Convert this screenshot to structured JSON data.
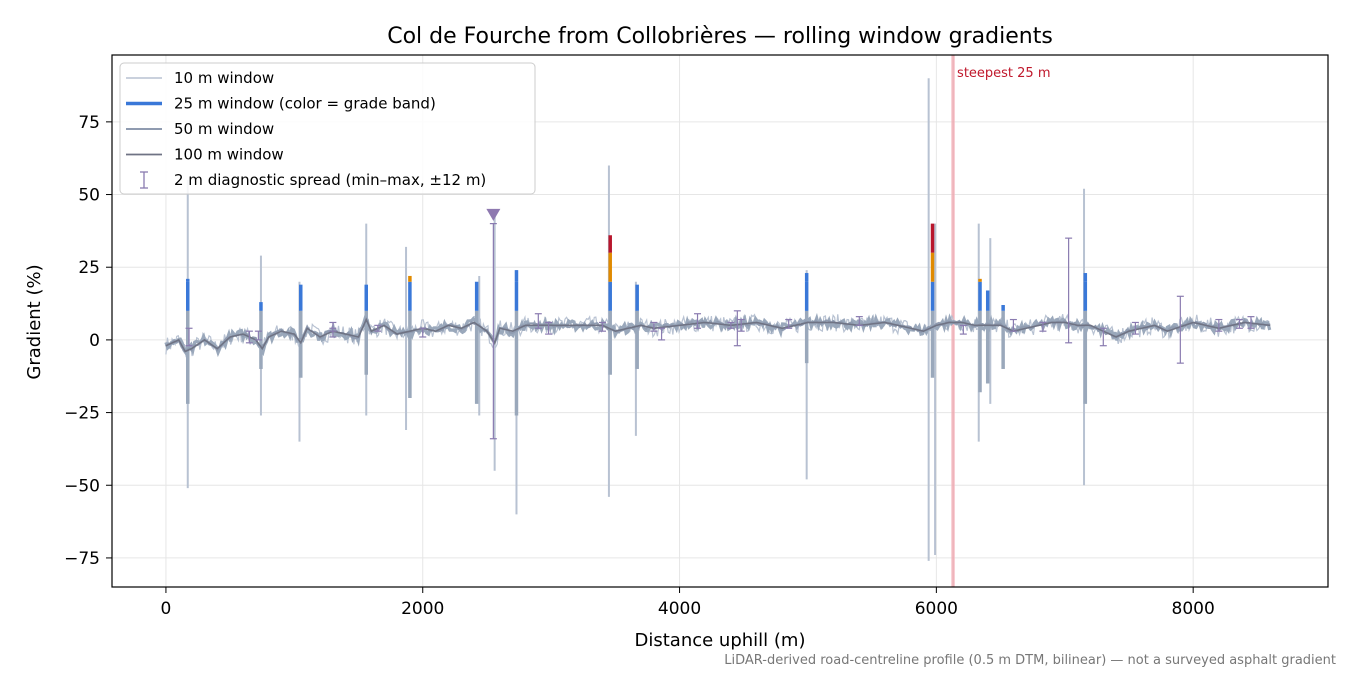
{
  "chart_data": {
    "type": "line",
    "title": "Col de Fourche from Collobrières — rolling window gradients",
    "xlabel": "Distance uphill (m)",
    "ylabel": "Gradient (%)",
    "xlim": [
      -420,
      9050
    ],
    "ylim": [
      -85,
      98
    ],
    "xticks": [
      0,
      2000,
      4000,
      6000,
      8000
    ],
    "xtick_labels": [
      "0",
      "2000",
      "4000",
      "6000",
      "8000"
    ],
    "yticks": [
      -75,
      -50,
      -25,
      0,
      25,
      50,
      75
    ],
    "ytick_labels": [
      "−75",
      "−50",
      "−25",
      "0",
      "25",
      "50",
      "75"
    ],
    "grid": true,
    "legend_position": "top-left",
    "footnote": "LiDAR-derived road-centreline profile (0.5 m DTM, bilinear) — not a surveyed asphalt gradient",
    "colors": {
      "w10": "#b8c2d2",
      "w25_base": "#9aa8bb",
      "band_blue": "#3a78d8",
      "band_orange": "#e08a00",
      "band_red": "#b8162c",
      "w50": "#8f9bb0",
      "w100": "#6f7384",
      "errorbar": "#8a7bb0",
      "marker": "#8e79b0",
      "steepest_band": "#f5b9c0",
      "steepest_line": "#e8a0a8",
      "steepest_text": "#c0182c",
      "grid": "#e6e6e6"
    },
    "legend": [
      {
        "label": "10 m window",
        "kind": "line-thin"
      },
      {
        "label": "25 m window (color = grade band)",
        "kind": "line-thick"
      },
      {
        "label": "50 m window",
        "kind": "line-mid"
      },
      {
        "label": "100 m window",
        "kind": "line-dark"
      },
      {
        "label": "2 m diagnostic spread (min–max, ±12 m)",
        "kind": "errorbar"
      }
    ],
    "annotations": {
      "steepest_label": "steepest 25 m",
      "steepest_x": 6130,
      "steepest_width": 30,
      "marker_x": 2550,
      "marker_y": 43,
      "marker_shape": "downward triangle"
    },
    "series": [
      {
        "name": "10 m window",
        "spikes": [
          {
            "x": 170,
            "low": -51,
            "high": 55
          },
          {
            "x": 740,
            "low": -26,
            "high": 29
          },
          {
            "x": 1040,
            "low": -35,
            "high": 20
          },
          {
            "x": 1560,
            "low": -26,
            "high": 40
          },
          {
            "x": 1870,
            "low": -31,
            "high": 32
          },
          {
            "x": 2440,
            "low": -26,
            "high": 22
          },
          {
            "x": 2560,
            "low": -45,
            "high": 45
          },
          {
            "x": 2730,
            "low": -60,
            "high": 24
          },
          {
            "x": 3450,
            "low": -54,
            "high": 60
          },
          {
            "x": 3660,
            "low": -33,
            "high": 20
          },
          {
            "x": 4990,
            "low": -48,
            "high": 24
          },
          {
            "x": 5940,
            "low": -76,
            "high": 90
          },
          {
            "x": 5990,
            "low": -74,
            "high": 40
          },
          {
            "x": 6330,
            "low": -35,
            "high": 40
          },
          {
            "x": 6420,
            "low": -22,
            "high": 35
          },
          {
            "x": 7150,
            "low": -50,
            "high": 52
          }
        ]
      },
      {
        "name": "25 m window (color = grade band)",
        "excursions": [
          {
            "x": 170,
            "low": -22,
            "high": 21,
            "band": "blue"
          },
          {
            "x": 740,
            "low": -10,
            "high": 13,
            "band": "blue"
          },
          {
            "x": 1050,
            "low": -13,
            "high": 19,
            "band": "blue"
          },
          {
            "x": 1560,
            "low": -12,
            "high": 19,
            "band": "blue"
          },
          {
            "x": 1900,
            "low": -20,
            "high": 22,
            "band": "orange"
          },
          {
            "x": 2420,
            "low": -22,
            "high": 20,
            "band": "blue"
          },
          {
            "x": 2730,
            "low": -26,
            "high": 24,
            "band": "blue"
          },
          {
            "x": 3460,
            "low": -12,
            "high": 36,
            "band": "red"
          },
          {
            "x": 3670,
            "low": -10,
            "high": 19,
            "band": "blue"
          },
          {
            "x": 4990,
            "low": -8,
            "high": 23,
            "band": "blue"
          },
          {
            "x": 5970,
            "low": -13,
            "high": 40,
            "band": "red"
          },
          {
            "x": 6340,
            "low": -18,
            "high": 21,
            "band": "orange"
          },
          {
            "x": 6400,
            "low": -15,
            "high": 17,
            "band": "blue"
          },
          {
            "x": 6520,
            "low": -10,
            "high": 12,
            "band": "blue"
          },
          {
            "x": 7160,
            "low": -22,
            "high": 23,
            "band": "blue"
          }
        ]
      },
      {
        "name": "100 m window",
        "x": [
          0,
          100,
          150,
          200,
          300,
          400,
          500,
          600,
          700,
          750,
          800,
          900,
          1000,
          1050,
          1100,
          1200,
          1300,
          1400,
          1500,
          1560,
          1600,
          1700,
          1800,
          1900,
          2000,
          2100,
          2200,
          2300,
          2400,
          2500,
          2560,
          2600,
          2700,
          2800,
          3000,
          3200,
          3400,
          3500,
          3600,
          3700,
          3800,
          4000,
          4200,
          4400,
          4600,
          4800,
          5000,
          5200,
          5400,
          5600,
          5800,
          5900,
          6000,
          6100,
          6200,
          6300,
          6400,
          6500,
          6600,
          6700,
          6800,
          6900,
          7000,
          7100,
          7200,
          7300,
          7400,
          7500,
          7600,
          7700,
          7800,
          8000,
          8200,
          8400,
          8600
        ],
        "y": [
          -2,
          0,
          -4,
          -3,
          0,
          -3,
          1,
          2,
          0,
          -3,
          1,
          3,
          2,
          -1,
          4,
          1,
          3,
          2,
          1,
          7,
          3,
          5,
          2,
          3,
          4,
          3,
          5,
          4,
          6,
          3,
          -1,
          4,
          3,
          5,
          5,
          5,
          5,
          3,
          4,
          5,
          4,
          5,
          6,
          5,
          6,
          4,
          6,
          6,
          5,
          6,
          4,
          3,
          5,
          6,
          6,
          5,
          5,
          5,
          3,
          4,
          5,
          6,
          6,
          5,
          5,
          3,
          1,
          3,
          4,
          5,
          3,
          6,
          4,
          6,
          5
        ]
      }
    ],
    "error_bars": [
      {
        "x": 180,
        "low": -2,
        "high": 4
      },
      {
        "x": 650,
        "low": -1,
        "high": 3
      },
      {
        "x": 720,
        "low": 0,
        "high": 3
      },
      {
        "x": 1300,
        "low": 3,
        "high": 6
      },
      {
        "x": 1300,
        "low": 1,
        "high": 4
      },
      {
        "x": 1650,
        "low": 3,
        "high": 5
      },
      {
        "x": 2000,
        "low": 1,
        "high": 4
      },
      {
        "x": 2550,
        "low": -34,
        "high": 40
      },
      {
        "x": 2900,
        "low": 4,
        "high": 9
      },
      {
        "x": 2980,
        "low": 2,
        "high": 6
      },
      {
        "x": 3400,
        "low": 3,
        "high": 6
      },
      {
        "x": 3800,
        "low": 3,
        "high": 6
      },
      {
        "x": 3860,
        "low": 0,
        "high": 4
      },
      {
        "x": 4140,
        "low": 4,
        "high": 9
      },
      {
        "x": 4400,
        "low": 4,
        "high": 6
      },
      {
        "x": 4450,
        "low": -2,
        "high": 10
      },
      {
        "x": 4480,
        "low": 3,
        "high": 7
      },
      {
        "x": 4850,
        "low": 4,
        "high": 7
      },
      {
        "x": 5400,
        "low": 5,
        "high": 8
      },
      {
        "x": 6210,
        "low": 2,
        "high": 5
      },
      {
        "x": 6600,
        "low": 3,
        "high": 7
      },
      {
        "x": 6830,
        "low": 3,
        "high": 6
      },
      {
        "x": 7030,
        "low": -1,
        "high": 35
      },
      {
        "x": 7300,
        "low": -2,
        "high": 4
      },
      {
        "x": 7550,
        "low": 2,
        "high": 6
      },
      {
        "x": 7900,
        "low": -8,
        "high": 15
      },
      {
        "x": 8200,
        "low": 3,
        "high": 7
      },
      {
        "x": 8360,
        "low": 4,
        "high": 7
      },
      {
        "x": 8450,
        "low": 4,
        "high": 8
      }
    ]
  }
}
